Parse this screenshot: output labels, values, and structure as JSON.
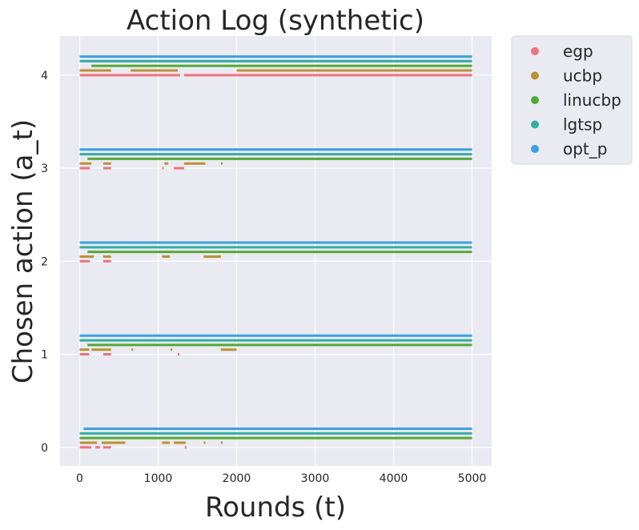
{
  "chart_data": {
    "type": "scatter",
    "title": "Action Log (synthetic)",
    "xlabel": "Rounds (t)",
    "ylabel": "Chosen action (a_t)",
    "xlim": [
      -250,
      5250
    ],
    "ylim": [
      -0.2,
      4.42
    ],
    "x_ticks": [
      0,
      1000,
      2000,
      3000,
      4000,
      5000
    ],
    "y_ticks": [
      0,
      1,
      2,
      3,
      4
    ],
    "grid": true,
    "background": "#eaeaf2",
    "legend_position": "outside-top-right",
    "series": [
      {
        "name": "egp",
        "color": "#f0727e",
        "offset": 0.0,
        "segments": {
          "0": [
            [
              0,
              150
            ],
            [
              200,
              260
            ],
            [
              300,
              400
            ],
            [
              1340,
              1345
            ]
          ],
          "1": [
            [
              0,
              120
            ],
            [
              300,
              400
            ],
            [
              1250,
              1255
            ]
          ],
          "2": [
            [
              0,
              130
            ],
            [
              300,
              400
            ]
          ],
          "3": [
            [
              0,
              130
            ],
            [
              300,
              400
            ],
            [
              1050,
              1060
            ],
            [
              1200,
              1330
            ]
          ],
          "4": [
            [
              0,
              1280
            ],
            [
              1330,
              5000
            ]
          ]
        }
      },
      {
        "name": "ucbp",
        "color": "#b99233",
        "offset": 0.05,
        "segments": {
          "0": [
            [
              0,
              220
            ],
            [
              280,
              580
            ],
            [
              1050,
              1150
            ],
            [
              1200,
              1350
            ],
            [
              1580,
              1600
            ],
            [
              1800,
              1810
            ]
          ],
          "1": [
            [
              0,
              120
            ],
            [
              150,
              400
            ],
            [
              660,
              680
            ],
            [
              1160,
              1170
            ],
            [
              1800,
              2000
            ]
          ],
          "2": [
            [
              0,
              180
            ],
            [
              300,
              400
            ],
            [
              1050,
              1150
            ],
            [
              1580,
              1800
            ]
          ],
          "3": [
            [
              0,
              150
            ],
            [
              300,
              400
            ],
            [
              1080,
              1130
            ],
            [
              1330,
              1600
            ],
            [
              1800,
              1810
            ]
          ],
          "4": [
            [
              0,
              400
            ],
            [
              650,
              1250
            ],
            [
              2000,
              5000
            ]
          ]
        }
      },
      {
        "name": "linucbp",
        "color": "#53a935",
        "offset": 0.1,
        "segments": {
          "0": [
            [
              0,
              5000
            ]
          ],
          "1": [
            [
              100,
              5000
            ]
          ],
          "2": [
            [
              100,
              5000
            ]
          ],
          "3": [
            [
              100,
              5000
            ]
          ],
          "4": [
            [
              150,
              5000
            ]
          ]
        }
      },
      {
        "name": "lgtsp",
        "color": "#36ada4",
        "offset": 0.15,
        "segments": {
          "0": [
            [
              0,
              5000
            ]
          ],
          "1": [
            [
              0,
              5000
            ]
          ],
          "2": [
            [
              0,
              5000
            ]
          ],
          "3": [
            [
              0,
              5000
            ]
          ],
          "4": [
            [
              0,
              5000
            ]
          ]
        }
      },
      {
        "name": "opt_p",
        "color": "#3aa0e0",
        "offset": 0.2,
        "segments": {
          "0": [
            [
              50,
              5000
            ]
          ],
          "1": [
            [
              0,
              5000
            ]
          ],
          "2": [
            [
              0,
              5000
            ]
          ],
          "3": [
            [
              0,
              5000
            ]
          ],
          "4": [
            [
              0,
              5000
            ]
          ]
        }
      }
    ]
  }
}
